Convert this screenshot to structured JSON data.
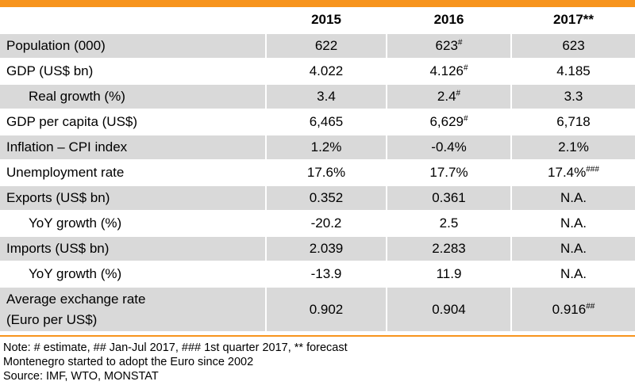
{
  "header": {
    "col0": "",
    "col1": "2015",
    "col2": "2016",
    "col3": "2017**"
  },
  "rows": [
    {
      "label": "Population (000)",
      "v2015": "622",
      "v2016": "623",
      "v2016_sup": "#",
      "v2017": "623",
      "v2017_sup": ""
    },
    {
      "label": "GDP (US$ bn)",
      "v2015": "4.022",
      "v2016": "4.126",
      "v2016_sup": "#",
      "v2017": "4.185",
      "v2017_sup": ""
    },
    {
      "label": "Real growth (%)",
      "v2015": "3.4",
      "v2016": "2.4",
      "v2016_sup": "#",
      "v2017": "3.3",
      "v2017_sup": ""
    },
    {
      "label": "GDP per capita (US$)",
      "v2015": "6,465",
      "v2016": "6,629",
      "v2016_sup": "#",
      "v2017": "6,718",
      "v2017_sup": ""
    },
    {
      "label": "Inflation – CPI index",
      "v2015": "1.2%",
      "v2016": "-0.4%",
      "v2016_sup": "",
      "v2017": "2.1%",
      "v2017_sup": ""
    },
    {
      "label": "Unemployment rate",
      "v2015": "17.6%",
      "v2016": "17.7%",
      "v2016_sup": "",
      "v2017": "17.4%",
      "v2017_sup": "###"
    },
    {
      "label": "Exports (US$ bn)",
      "v2015": "0.352",
      "v2016": "0.361",
      "v2016_sup": "",
      "v2017": "N.A.",
      "v2017_sup": ""
    },
    {
      "label": "YoY growth (%)",
      "v2015": "-20.2",
      "v2016": "2.5",
      "v2016_sup": "",
      "v2017": "N.A.",
      "v2017_sup": ""
    },
    {
      "label": "Imports (US$ bn)",
      "v2015": "2.039",
      "v2016": "2.283",
      "v2016_sup": "",
      "v2017": "N.A.",
      "v2017_sup": ""
    },
    {
      "label": "YoY growth (%)",
      "v2015": "-13.9",
      "v2016": "11.9",
      "v2016_sup": "",
      "v2017": "N.A.",
      "v2017_sup": ""
    },
    {
      "label_line1": "Average exchange rate",
      "label_line2": "(Euro per US$)",
      "v2015": "0.902",
      "v2016": "0.904",
      "v2016_sup": "",
      "v2017": "0.916",
      "v2017_sup": "##"
    }
  ],
  "notes": {
    "line1": "Note: # estimate, ## Jan-Jul 2017, ### 1st quarter 2017, ** forecast",
    "line2": "Montenegro started to adopt the Euro since 2002",
    "line3": "Source: IMF, WTO, MONSTAT"
  },
  "colors": {
    "accent": "#F7941D",
    "shade": "#D9D9D9"
  }
}
